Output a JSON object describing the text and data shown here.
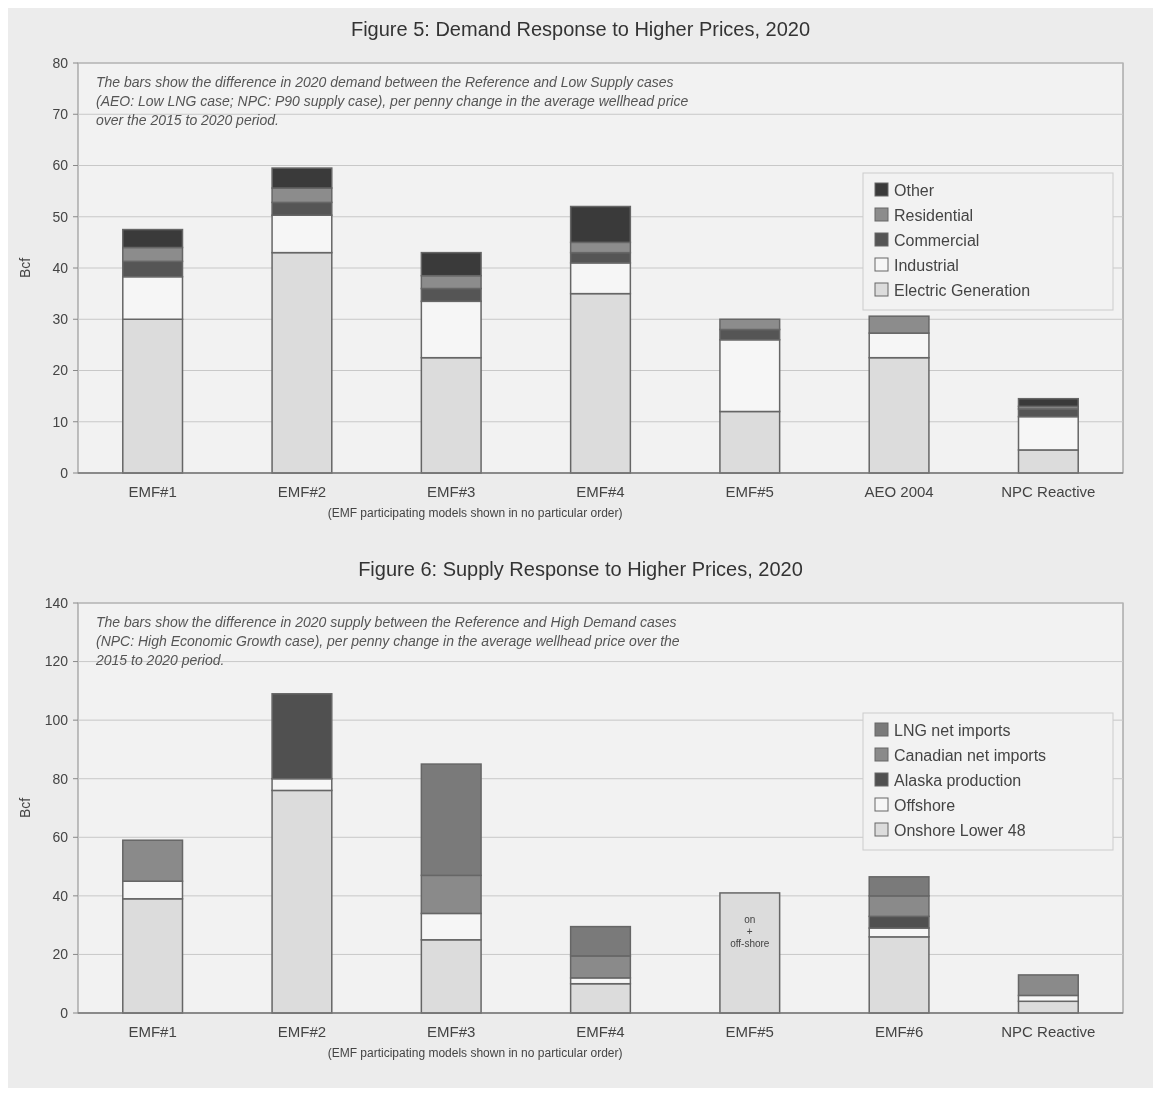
{
  "chart_data": [
    {
      "type": "bar",
      "title": "Figure 5: Demand Response to Higher Prices, 2020",
      "xlabel": "(EMF participating models shown in no particular order)",
      "ylabel": "Bcf",
      "categories": [
        "EMF#1",
        "EMF#2",
        "EMF#3",
        "EMF#4",
        "EMF#5",
        "AEO 2004",
        "NPC Reactive"
      ],
      "stacked": true,
      "ylim": [
        0,
        80
      ],
      "yticks": [
        0,
        10,
        20,
        30,
        40,
        50,
        60,
        70,
        80
      ],
      "grid": "y",
      "legend": "right",
      "series": [
        {
          "name": "Electric Generation",
          "color": "#dcdcdc",
          "values": [
            30,
            43,
            22.5,
            35,
            12,
            22.5,
            4.5
          ]
        },
        {
          "name": "Industrial",
          "color": "#f6f6f6",
          "values": [
            8.3,
            7.3,
            11,
            6,
            14,
            4.8,
            6.5
          ]
        },
        {
          "name": "Commercial",
          "color": "#555555",
          "values": [
            3,
            2.5,
            2.5,
            2,
            2,
            0,
            1.5
          ]
        },
        {
          "name": "Residential",
          "color": "#8c8c8c",
          "values": [
            2.7,
            2.8,
            2.5,
            2,
            2,
            3.3,
            0.5
          ]
        },
        {
          "name": "Other",
          "color": "#3a3a3a",
          "values": [
            3.5,
            3.9,
            4.5,
            7,
            0,
            0,
            1.5
          ]
        }
      ],
      "annotations": [
        "The bars show the difference in 2020 demand between the Reference and Low Supply cases (AEO: Low LNG case; NPC: P90 supply case), per penny change in the average wellhead price over the 2015 to 2020 period."
      ]
    },
    {
      "type": "bar",
      "title": "Figure 6: Supply Response to Higher Prices, 2020",
      "xlabel": "(EMF participating models shown in no particular order)",
      "ylabel": "Bcf",
      "categories": [
        "EMF#1",
        "EMF#2",
        "EMF#3",
        "EMF#4",
        "EMF#5",
        "EMF#6",
        "NPC Reactive"
      ],
      "stacked": true,
      "ylim": [
        0,
        140
      ],
      "yticks": [
        0,
        20,
        40,
        60,
        80,
        100,
        120,
        140
      ],
      "grid": "y",
      "legend": "right",
      "series": [
        {
          "name": "Onshore Lower 48",
          "color": "#dcdcdc",
          "values": [
            39,
            76,
            25,
            10,
            41,
            26,
            4
          ]
        },
        {
          "name": "Offshore",
          "color": "#f6f6f6",
          "values": [
            6,
            4,
            9,
            2,
            0,
            3,
            2
          ]
        },
        {
          "name": "Alaska production",
          "color": "#505050",
          "values": [
            0,
            29,
            0,
            0,
            0,
            4,
            0
          ]
        },
        {
          "name": "Canadian net imports",
          "color": "#8a8a8a",
          "values": [
            14,
            0,
            13,
            7.5,
            0,
            7,
            7
          ]
        },
        {
          "name": "LNG net imports",
          "color": "#7a7a7a",
          "values": [
            0,
            0,
            38,
            10,
            0,
            6.5,
            0
          ]
        }
      ],
      "annotations": [
        "The bars show the difference in 2020 supply between the Reference and High Demand cases (NPC: High Economic Growth case), per penny change in the average wellhead price over the 2015 to 2020 period.",
        "on + off-shore"
      ]
    }
  ]
}
